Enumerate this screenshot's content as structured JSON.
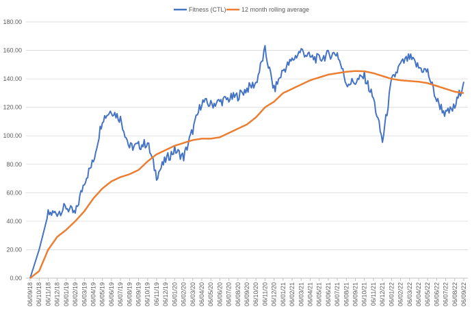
{
  "chart_data": {
    "type": "line",
    "title": "",
    "xlabel": "",
    "ylabel": "",
    "ylim": [
      0,
      180
    ],
    "y_ticks": [
      "0.00",
      "20.00",
      "40.00",
      "60.00",
      "80.00",
      "100.00",
      "120.00",
      "140.00",
      "160.00",
      "180.00"
    ],
    "y_tick_values": [
      0,
      20,
      40,
      60,
      80,
      100,
      120,
      140,
      160,
      180
    ],
    "x_categories": [
      "06/09/18",
      "06/10/18",
      "06/11/18",
      "06/12/18",
      "06/01/19",
      "06/02/19",
      "06/03/19",
      "06/04/19",
      "06/05/19",
      "06/06/19",
      "06/07/19",
      "06/08/19",
      "06/09/19",
      "06/10/19",
      "06/11/19",
      "06/12/19",
      "06/01/20",
      "06/02/20",
      "06/03/20",
      "06/04/20",
      "06/05/20",
      "06/06/20",
      "06/07/20",
      "06/08/20",
      "06/09/20",
      "06/10/20",
      "06/11/20",
      "06/12/20",
      "06/01/21",
      "06/02/21",
      "06/03/21",
      "06/04/21",
      "06/05/21",
      "06/06/21",
      "06/07/21",
      "06/08/21",
      "06/09/21",
      "06/10/21",
      "06/11/21",
      "06/12/21",
      "06/01/22",
      "06/02/22",
      "06/03/22",
      "06/04/22",
      "06/05/22",
      "06/06/22",
      "06/07/22",
      "06/08/22",
      "06/09/22"
    ],
    "grid": true,
    "legend_position": "top-center",
    "series": [
      {
        "name": "Fitness (CTL)",
        "color": "#4472C4",
        "values": [
          0,
          20,
          45,
          46,
          50,
          45,
          68,
          82,
          112,
          118,
          112,
          92,
          93,
          95,
          72,
          83,
          90,
          85,
          104,
          124,
          122,
          124,
          126,
          128,
          133,
          137,
          160,
          132,
          146,
          153,
          160,
          155,
          154,
          157,
          158,
          137,
          138,
          142,
          126,
          96,
          138,
          150,
          155,
          148,
          145,
          125,
          115,
          120,
          138
        ]
      },
      {
        "name": "12 month rolling average",
        "color": "#ED7D31",
        "values": [
          0,
          5,
          20,
          29,
          34,
          40,
          47,
          56,
          63,
          68,
          71,
          73,
          76,
          82,
          87,
          90,
          93,
          95,
          97,
          98,
          98,
          99,
          102,
          105,
          108,
          113,
          120,
          124,
          130,
          133,
          136,
          139,
          141,
          143,
          144,
          145,
          145.5,
          145.3,
          144,
          142,
          140,
          139,
          138.5,
          138,
          137,
          135,
          133,
          131,
          130
        ]
      }
    ]
  },
  "colors": {
    "fitness": "#4472C4",
    "rolling_avg": "#ED7D31",
    "gridline": "#D9D9D9",
    "axis_text": "#595959"
  }
}
